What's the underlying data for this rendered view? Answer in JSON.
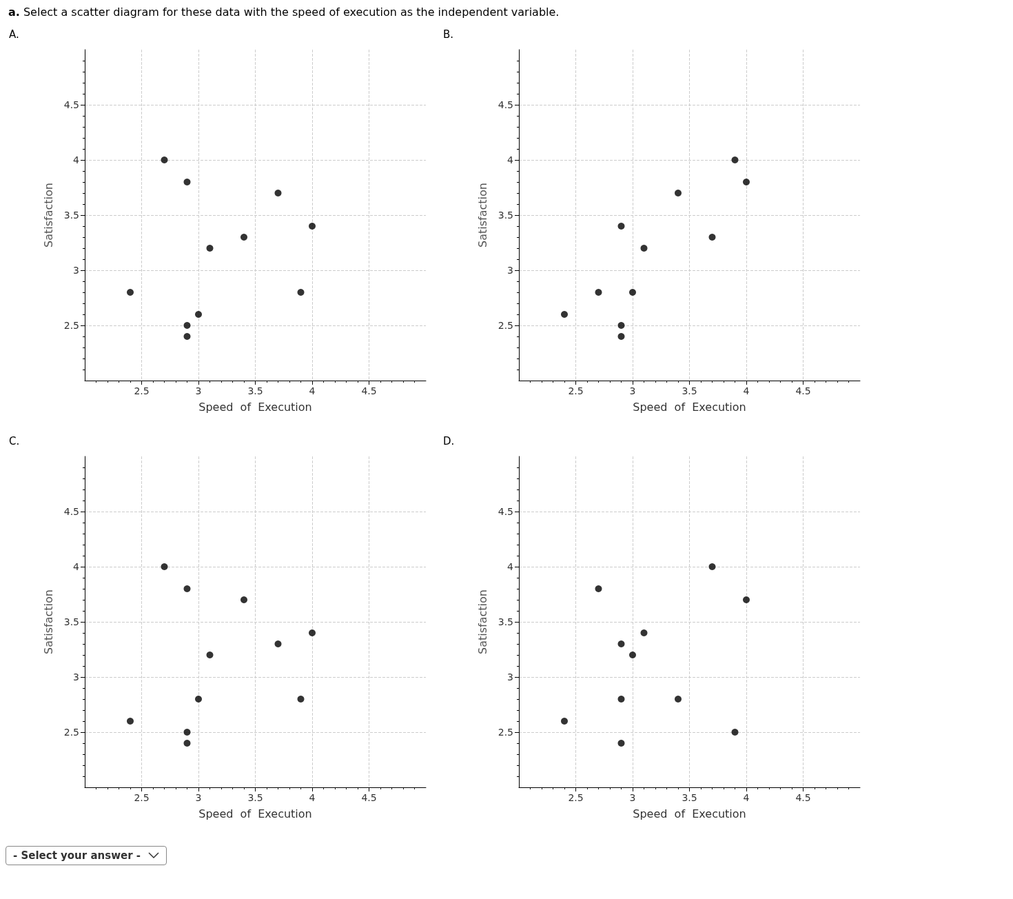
{
  "chart_data": [
    {
      "type": "scatter",
      "title": "A.",
      "xlabel": "Speed  of  Execution",
      "ylabel": "Satisfaction",
      "annotations": [
        "a. Select a scatter diagram for these data with the speed of execution as the independent variable."
      ],
      "x": [
        2.4,
        2.7,
        2.9,
        2.9,
        2.9,
        3.0,
        3.1,
        3.4,
        3.7,
        3.9,
        4.0
      ],
      "values": [
        2.8,
        4.0,
        3.8,
        2.5,
        2.4,
        2.6,
        3.2,
        3.3,
        3.7,
        2.8,
        3.4
      ],
      "color": "#000000",
      "marker": "circle",
      "xlim": [
        2,
        5
      ],
      "ylim": [
        2,
        5
      ],
      "xticks": [
        2.5,
        3,
        3.5,
        4,
        4.5
      ],
      "yticks": [
        2.5,
        3,
        3.5,
        4,
        4.5
      ],
      "grid": true
    },
    {
      "type": "scatter",
      "title": "B.",
      "xlabel": "Speed  of  Execution",
      "ylabel": "Satisfaction",
      "x": [
        2.4,
        2.7,
        2.9,
        2.9,
        2.9,
        3.0,
        3.1,
        3.4,
        3.7,
        3.9,
        4.0
      ],
      "values": [
        2.6,
        2.8,
        3.4,
        2.5,
        2.4,
        2.8,
        3.2,
        3.7,
        3.3,
        4.0,
        3.8
      ],
      "color": "#000000",
      "marker": "circle",
      "xlim": [
        2,
        5
      ],
      "ylim": [
        2,
        5
      ],
      "xticks": [
        2.5,
        3,
        3.5,
        4,
        4.5
      ],
      "yticks": [
        2.5,
        3,
        3.5,
        4,
        4.5
      ],
      "grid": true
    },
    {
      "type": "scatter",
      "title": "C.",
      "xlabel": "Speed  of  Execution",
      "ylabel": "Satisfaction",
      "annotations": [
        "- Select your answer -"
      ],
      "x": [
        2.4,
        2.7,
        2.9,
        2.9,
        2.9,
        3.0,
        3.1,
        3.4,
        3.7,
        3.9,
        4.0
      ],
      "values": [
        2.6,
        4.0,
        3.8,
        2.5,
        2.4,
        2.8,
        3.2,
        3.7,
        3.3,
        2.8,
        3.4
      ],
      "color": "#000000",
      "marker": "circle",
      "xlim": [
        2,
        5
      ],
      "ylim": [
        2,
        5
      ],
      "xticks": [
        2.5,
        3,
        3.5,
        4,
        4.5
      ],
      "yticks": [
        2.5,
        3,
        3.5,
        4,
        4.5
      ],
      "grid": true
    },
    {
      "type": "scatter",
      "title": "D.",
      "xlabel": "Speed  of  Execution",
      "ylabel": "Satisfaction",
      "x": [
        2.4,
        2.7,
        2.9,
        2.9,
        2.9,
        3.0,
        3.1,
        3.4,
        3.7,
        3.9,
        4.0
      ],
      "values": [
        2.6,
        3.8,
        3.3,
        2.8,
        2.4,
        3.2,
        3.4,
        2.8,
        4.0,
        2.5,
        3.7
      ],
      "color": "#000000",
      "marker": "circle",
      "xlim": [
        2,
        5
      ],
      "ylim": [
        2,
        5
      ],
      "xticks": [
        2.5,
        3,
        3.5,
        4,
        4.5
      ],
      "yticks": [
        2.5,
        3,
        3.5,
        4,
        4.5
      ],
      "grid": true
    }
  ]
}
